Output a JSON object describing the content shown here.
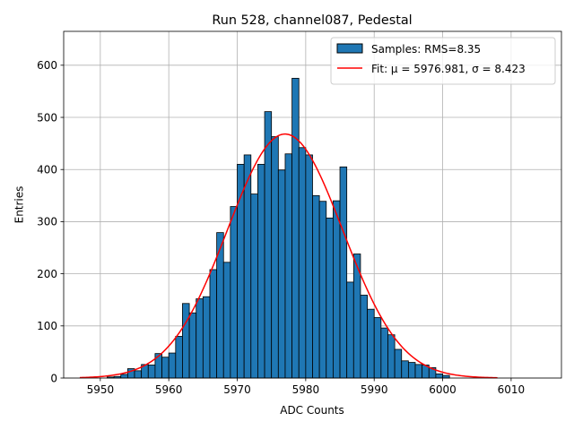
{
  "chart_data": {
    "type": "bar",
    "title": "Run 528, channel087, Pedestal",
    "xlabel": "ADC Counts",
    "ylabel": "Entries",
    "xlim": [
      5944.65,
      6017.35
    ],
    "ylim": [
      0,
      665
    ],
    "grid": true,
    "legend_position": "top-right",
    "x_ticks": [
      5950,
      5960,
      5970,
      5980,
      5990,
      6000,
      6010
    ],
    "y_ticks": [
      0,
      100,
      200,
      300,
      400,
      500,
      600
    ],
    "histogram": {
      "name": "Samples: RMS=8.35",
      "color": "#1f77b4",
      "edge_color": "#000000",
      "bin_edges": [
        5947,
        5948,
        5949,
        5950,
        5951,
        5952,
        5953,
        5954,
        5955,
        5956,
        5957,
        5958,
        5959,
        5960,
        5961,
        5962,
        5963,
        5964,
        5965,
        5966,
        5967,
        5968,
        5969,
        5970,
        5971,
        5972,
        5973,
        5974,
        5975,
        5976,
        5977,
        5978,
        5979,
        5980,
        5981,
        5982,
        5983,
        5984,
        5985,
        5986,
        5987,
        5988,
        5989,
        5990,
        5991,
        5992,
        5993,
        5994,
        5995,
        5996,
        5997,
        5998,
        5999,
        6000,
        6001,
        6002,
        6003,
        6004,
        6005,
        6006,
        6007,
        6008
      ],
      "counts": [
        0,
        0,
        0,
        0,
        2,
        3,
        7,
        18,
        14,
        26,
        25,
        47,
        40,
        48,
        80,
        143,
        125,
        152,
        156,
        208,
        279,
        222,
        329,
        410,
        428,
        353,
        410,
        511,
        463,
        399,
        430,
        575,
        442,
        428,
        350,
        339,
        307,
        340,
        405,
        184,
        238,
        159,
        132,
        116,
        96,
        83,
        55,
        33,
        30,
        26,
        25,
        20,
        8,
        5,
        0,
        0,
        0,
        0,
        0,
        0,
        0
      ]
    },
    "fit": {
      "name": "Fit: $\\mu$ = 5976.981, $\\sigma$ = 8.423",
      "legend_text": "Fit: μ = 5976.981, σ = 8.423",
      "color": "#ff0000",
      "mu": 5976.981,
      "sigma": 8.423,
      "amplitude": 468,
      "x_range": [
        5947,
        6008
      ]
    }
  }
}
